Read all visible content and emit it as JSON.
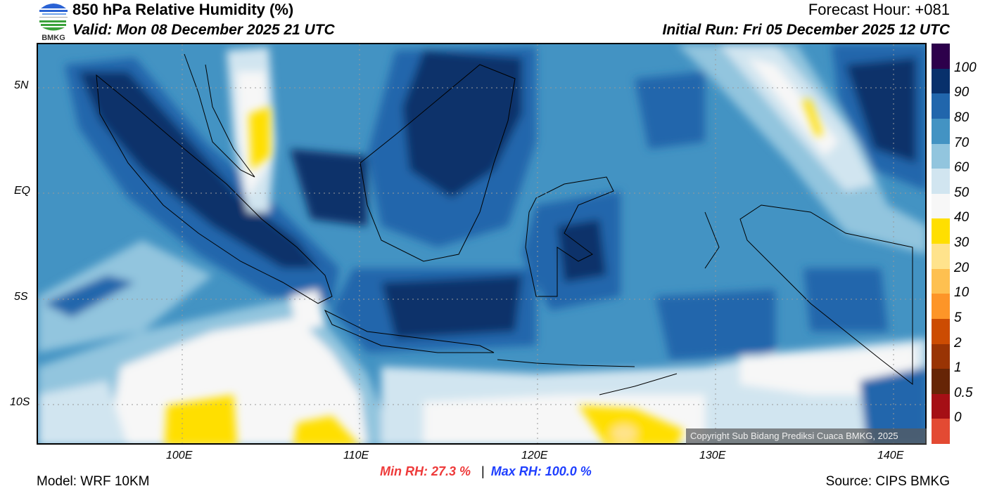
{
  "header": {
    "logo_text": "BMKG",
    "title": "850 hPa Relative Humidity (%)",
    "valid": "Valid: Mon 08 December 2025 21 UTC",
    "forecast_hour": "Forecast Hour: +081",
    "initial_run": "Initial Run: Fri 05 December 2025 12 UTC"
  },
  "map": {
    "lat_labels": [
      "5N",
      "EQ",
      "5S",
      "10S"
    ],
    "lon_labels": [
      "100E",
      "110E",
      "120E",
      "130E",
      "140E"
    ],
    "copyright": "Copyright Sub Bidang Prediksi Cuaca BMKG, 2025"
  },
  "colorbar": {
    "colors": [
      "#2d004b",
      "#08306b",
      "#2166ac",
      "#4393c3",
      "#92c5de",
      "#d1e5f0",
      "#f7f7f7",
      "#ffdf00",
      "#ffe38c",
      "#fec050",
      "#fd9528",
      "#cc4c02",
      "#993404",
      "#662506",
      "#a50f15",
      "#e34a33"
    ],
    "labels": [
      "100",
      "90",
      "80",
      "70",
      "60",
      "50",
      "40",
      "30",
      "20",
      "10",
      "5",
      "2",
      "1",
      "0.5",
      "0"
    ]
  },
  "footer": {
    "model": "Model: WRF 10KM",
    "min_rh": "Min RH:  27.3 %",
    "separator": "|",
    "max_rh": "Max RH: 100.0 %",
    "source": "Source: CIPS BMKG"
  },
  "colors": {
    "min": "#ee3a3a",
    "max": "#1f3fff"
  }
}
